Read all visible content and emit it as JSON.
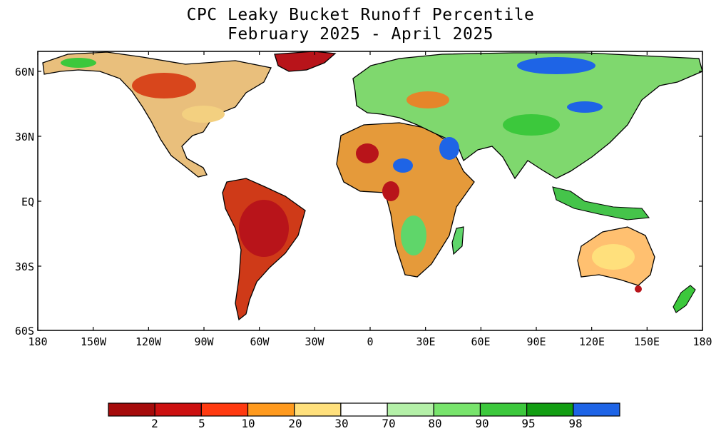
{
  "title": {
    "line1": "CPC Leaky Bucket Runoff Percentile",
    "line2": "February 2025 - April 2025"
  },
  "map": {
    "lat_labels": [
      "60N",
      "30N",
      "EQ",
      "30S",
      "60S"
    ],
    "lon_labels": [
      "180",
      "150W",
      "120W",
      "90W",
      "60W",
      "30W",
      "0",
      "30E",
      "60E",
      "90E",
      "120E",
      "150E",
      "180"
    ]
  },
  "legend": {
    "labels": [
      "2",
      "5",
      "10",
      "20",
      "30",
      "70",
      "80",
      "90",
      "95",
      "98"
    ],
    "colors": [
      "#a50b0b",
      "#cc1010",
      "#ff3a10",
      "#ff9a1e",
      "#ffe07c",
      "#ffffff",
      "#b4f0a8",
      "#78e46c",
      "#3cc83c",
      "#129e12",
      "#1e64e6"
    ]
  }
}
